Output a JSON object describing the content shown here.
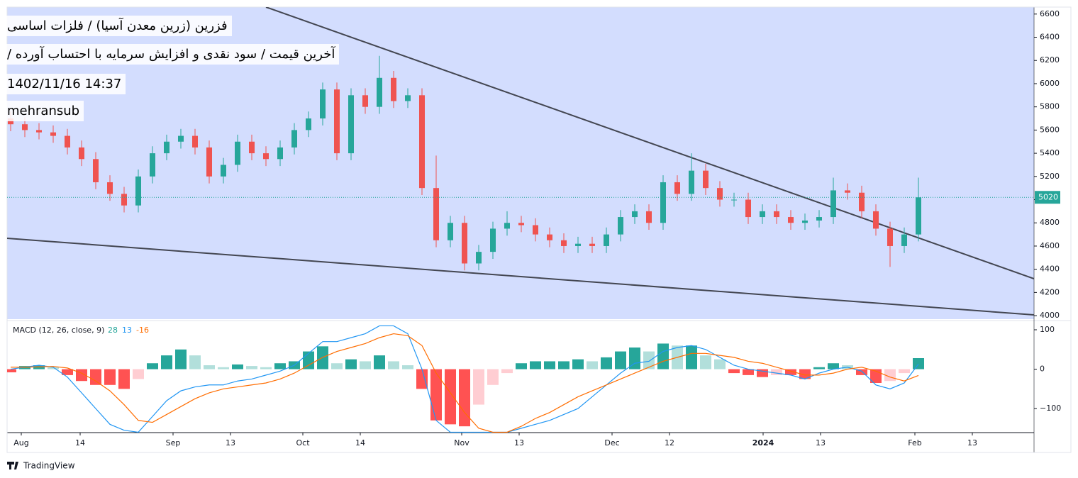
{
  "header": {
    "title": "فزرین (زرین معدن آسیا) / فلزات اساسی",
    "subtitle": "آخرین قیمت / سود نقدی و افزایش سرمایه با احتساب آورده /",
    "datetime": "1402/11/16 14:37",
    "author": "mehransub"
  },
  "footer": {
    "brand": "TradingView"
  },
  "chart_data": [
    {
      "type": "candlestick",
      "x": [
        0,
        2,
        4,
        6,
        8,
        10,
        12,
        14,
        16,
        18,
        20,
        22,
        24,
        26,
        28,
        30,
        32,
        34,
        36,
        38,
        40,
        42,
        44,
        46,
        48,
        50,
        52,
        54,
        56,
        58,
        60,
        62,
        64,
        66,
        68,
        70,
        72,
        74,
        76,
        78,
        80,
        82,
        84,
        86,
        88,
        90,
        92,
        94,
        96,
        98,
        100,
        102,
        104,
        106,
        108,
        110,
        112,
        114,
        116,
        118,
        120,
        122,
        124,
        126,
        128
      ],
      "open": [
        5700,
        5650,
        5600,
        5580,
        5550,
        5450,
        5350,
        5150,
        5050,
        4950,
        5200,
        5400,
        5500,
        5550,
        5450,
        5200,
        5300,
        5500,
        5400,
        5350,
        5450,
        5600,
        5700,
        5950,
        5400,
        5900,
        5800,
        6050,
        5850,
        5900,
        5100,
        4650,
        4800,
        4450,
        4550,
        4750,
        4800,
        4780,
        4700,
        4650,
        4600,
        4620,
        4600,
        4700,
        4850,
        4900,
        4800,
        5150,
        5050,
        5250,
        5100,
        5000,
        5000,
        4850,
        4900,
        4850,
        4800,
        4820,
        4850,
        5080,
        5060,
        4900,
        4750,
        4600,
        4700
      ],
      "high": [
        5760,
        5710,
        5660,
        5640,
        5610,
        5510,
        5410,
        5210,
        5110,
        5260,
        5460,
        5560,
        5610,
        5610,
        5510,
        5360,
        5560,
        5560,
        5460,
        5510,
        5660,
        5760,
        6010,
        6010,
        5960,
        5960,
        6240,
        6110,
        5960,
        5960,
        5380,
        4860,
        4860,
        4610,
        4810,
        4900,
        4860,
        4840,
        4760,
        4710,
        4680,
        4680,
        4760,
        4910,
        4960,
        4960,
        5210,
        5210,
        5400,
        5310,
        5160,
        5060,
        5060,
        4960,
        4960,
        4910,
        4880,
        4910,
        5190,
        5140,
        5120,
        4960,
        4810,
        4760,
        5190
      ],
      "low": [
        5590,
        5540,
        5520,
        5490,
        5390,
        5290,
        5090,
        4990,
        4890,
        4890,
        5140,
        5340,
        5440,
        5390,
        5140,
        5140,
        5240,
        5340,
        5290,
        5290,
        5390,
        5540,
        5640,
        5340,
        5340,
        5740,
        5740,
        5790,
        5790,
        5040,
        4590,
        4590,
        4390,
        4390,
        4490,
        4690,
        4720,
        4640,
        4590,
        4540,
        4540,
        4540,
        4540,
        4640,
        4790,
        4740,
        4740,
        4990,
        4990,
        5040,
        4940,
        4940,
        4790,
        4790,
        4790,
        4740,
        4740,
        4760,
        4790,
        5000,
        4840,
        4690,
        4420,
        4540,
        4640
      ],
      "close": [
        5650,
        5600,
        5580,
        5550,
        5450,
        5350,
        5150,
        5050,
        4950,
        5200,
        5400,
        5500,
        5550,
        5450,
        5200,
        5300,
        5500,
        5400,
        5350,
        5450,
        5600,
        5700,
        5950,
        5400,
        5900,
        5800,
        6050,
        5850,
        5900,
        5100,
        4650,
        4800,
        4450,
        4550,
        4750,
        4800,
        4780,
        4700,
        4650,
        4600,
        4620,
        4600,
        4700,
        4850,
        4900,
        4800,
        5150,
        5050,
        5250,
        5100,
        5000,
        5000,
        4850,
        4900,
        4850,
        4800,
        4820,
        4850,
        5080,
        5060,
        4900,
        4750,
        4600,
        4700,
        5020
      ],
      "up_color": "#26a69a",
      "down_color": "#ef5350",
      "last_price": 5020,
      "xlim": [
        -1.5,
        144.3
      ],
      "xticks": [
        {
          "value": 1.5,
          "label": "Aug"
        },
        {
          "value": 9.8,
          "label": "14"
        },
        {
          "value": 22.9,
          "label": "Sep"
        },
        {
          "value": 31,
          "label": "13"
        },
        {
          "value": 41.2,
          "label": "Oct"
        },
        {
          "value": 49.3,
          "label": "14"
        },
        {
          "value": 63.6,
          "label": "Nov"
        },
        {
          "value": 71.7,
          "label": "13"
        },
        {
          "value": 84.8,
          "label": "Dec"
        },
        {
          "value": 92.9,
          "label": "12"
        },
        {
          "value": 106.1,
          "label": "2024"
        },
        {
          "value": 114.2,
          "label": "13"
        },
        {
          "value": 127.5,
          "label": "Feb"
        },
        {
          "value": 135.6,
          "label": "13"
        }
      ],
      "ylim": [
        3970,
        6660
      ],
      "yticks": [
        4000,
        4200,
        4400,
        4600,
        4800,
        5000,
        5200,
        5400,
        5600,
        5800,
        6000,
        6200,
        6400,
        6600
      ],
      "grid": false
    },
    {
      "type": "macd",
      "title": "MACD (12, 26, close, 9)",
      "x": [
        0,
        2,
        4,
        6,
        8,
        10,
        12,
        14,
        16,
        18,
        20,
        22,
        24,
        26,
        28,
        30,
        32,
        34,
        36,
        38,
        40,
        42,
        44,
        46,
        48,
        50,
        52,
        54,
        56,
        58,
        60,
        62,
        64,
        66,
        68,
        70,
        72,
        74,
        76,
        78,
        80,
        82,
        84,
        86,
        88,
        90,
        92,
        94,
        96,
        98,
        100,
        102,
        104,
        106,
        108,
        110,
        112,
        114,
        116,
        118,
        120,
        122,
        124,
        126,
        128
      ],
      "xlim": [
        -1.5,
        144.3
      ],
      "ylim": [
        -161,
        118
      ],
      "yticks": [
        100,
        0,
        {
          "value": -100,
          "label": "−100"
        }
      ],
      "series": [
        {
          "type": "bar",
          "color": "#26a69a",
          "colors": [
            "#26a69a",
            "#b2dfdb",
            "#ffcdd2",
            "#ff5252"
          ],
          "values": [
            -8,
            8,
            10,
            5,
            -15,
            -30,
            -40,
            -40,
            -50,
            -25,
            15,
            35,
            50,
            35,
            10,
            5,
            12,
            8,
            5,
            15,
            20,
            45,
            58,
            15,
            25,
            20,
            35,
            20,
            10,
            -50,
            -130,
            -140,
            -145,
            -90,
            -40,
            -10,
            15,
            20,
            20,
            20,
            25,
            20,
            30,
            45,
            55,
            45,
            65,
            60,
            60,
            35,
            25,
            -10,
            -15,
            -20,
            -15,
            -15,
            -25,
            5,
            15,
            10,
            -15,
            -35,
            -30,
            -10,
            28
          ]
        },
        {
          "type": "line",
          "color": "#2196f3",
          "values": [
            0,
            5,
            10,
            5,
            -20,
            -60,
            -100,
            -140,
            -155,
            -160,
            -120,
            -80,
            -55,
            -45,
            -40,
            -40,
            -30,
            -25,
            -15,
            -5,
            10,
            40,
            70,
            70,
            80,
            90,
            110,
            110,
            90,
            0,
            -130,
            -160,
            -160,
            -160,
            -160,
            -160,
            -150,
            -140,
            -130,
            -115,
            -100,
            -70,
            -40,
            -10,
            15,
            20,
            45,
            55,
            60,
            50,
            30,
            10,
            0,
            -5,
            -10,
            -15,
            -25,
            -10,
            0,
            5,
            -5,
            -40,
            -50,
            -35,
            13
          ]
        },
        {
          "type": "line",
          "color": "#ff6d00",
          "values": [
            5,
            5,
            6,
            7,
            3,
            -10,
            -30,
            -55,
            -90,
            -130,
            -135,
            -115,
            -95,
            -75,
            -60,
            -50,
            -45,
            -40,
            -35,
            -25,
            -10,
            10,
            30,
            45,
            55,
            65,
            80,
            90,
            85,
            60,
            -10,
            -60,
            -110,
            -150,
            -160,
            -160,
            -145,
            -125,
            -110,
            -90,
            -70,
            -55,
            -40,
            -25,
            -10,
            5,
            20,
            30,
            40,
            40,
            35,
            30,
            20,
            15,
            5,
            -5,
            -15,
            -15,
            -10,
            0,
            5,
            -5,
            -20,
            -30,
            -16
          ]
        }
      ]
    }
  ]
}
